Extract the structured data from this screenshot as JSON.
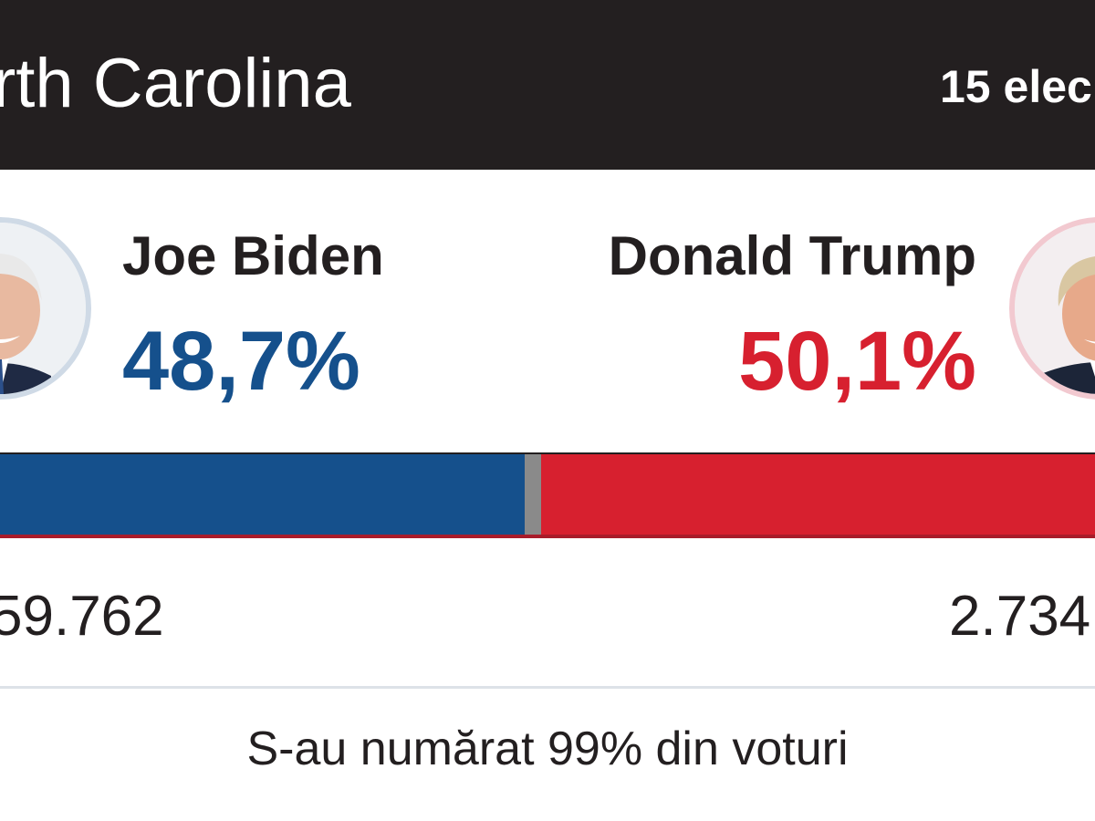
{
  "header": {
    "state": "rth Carolina",
    "electoral_votes": "15 elec"
  },
  "candidates": [
    {
      "name": "Joe Biden",
      "percent": "48,7%",
      "votes": "59.762",
      "color": "#15508c"
    },
    {
      "name": "Donald Trump",
      "percent": "50,1%",
      "votes": "2.734",
      "color": "#d7202f"
    }
  ],
  "bar": {
    "left_share": 0.487,
    "right_share": 0.501,
    "left_color": "#15508c",
    "right_color": "#d7202f",
    "gap_color": "#8a8a8a"
  },
  "footer": {
    "counted": "S-au numărat 99% din voturi"
  },
  "colors": {
    "header_bg": "#231f20",
    "text_dark": "#231f20"
  }
}
